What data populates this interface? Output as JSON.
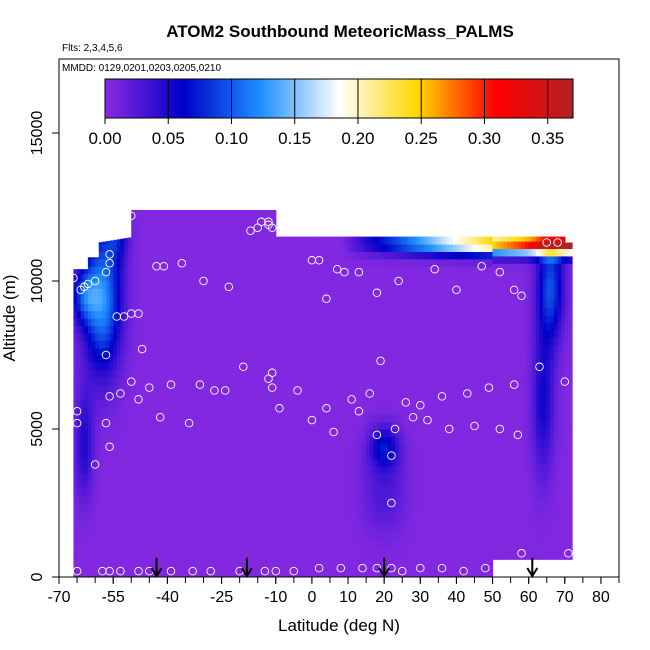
{
  "chart_data": {
    "type": "heatmap",
    "title": "ATOM2 Southbound MeteoricMass_PALMS",
    "flights_text": "Flts: 2,3,4,5,6",
    "dates_text": "MMDD: 0129,0201,0203,0205,0210",
    "xlabel": "Latitude (deg N)",
    "ylabel": "Altitude (m)",
    "xlim": [
      -70,
      85
    ],
    "ylim": [
      0,
      17500
    ],
    "x_ticks": [
      -70,
      -55,
      -40,
      -25,
      -10,
      0,
      10,
      20,
      30,
      40,
      50,
      60,
      70,
      80
    ],
    "y_ticks": [
      0,
      5000,
      10000,
      15000
    ],
    "colorbar": {
      "range": [
        0,
        0.37
      ],
      "ticks": [
        0.0,
        0.05,
        0.1,
        0.15,
        0.2,
        0.25,
        0.3,
        0.35
      ],
      "tick_labels": [
        "0.00",
        "0.05",
        "0.10",
        "0.15",
        "0.20",
        "0.25",
        "0.30",
        "0.35"
      ],
      "colors": [
        "#8a2be2",
        "#0000c8",
        "#1e90ff",
        "#ffffff",
        "#ffd700",
        "#ff0000",
        "#b22222"
      ]
    },
    "arrows_latitude": [
      -43,
      -18,
      20,
      61
    ],
    "sample_points": [
      [
        -65,
        5600
      ],
      [
        -65,
        5200
      ],
      [
        -66,
        10100
      ],
      [
        -64,
        9700
      ],
      [
        -63,
        9800
      ],
      [
        -62,
        9900
      ],
      [
        -60,
        10000
      ],
      [
        -56,
        10900
      ],
      [
        -56,
        10600
      ],
      [
        -57,
        10300
      ],
      [
        -54,
        11800
      ],
      [
        -52,
        12000
      ],
      [
        -50,
        12200
      ],
      [
        -54,
        8800
      ],
      [
        -52,
        8800
      ],
      [
        -50,
        8900
      ],
      [
        -48,
        8900
      ],
      [
        -57,
        7500
      ],
      [
        -47,
        7700
      ],
      [
        -50,
        6600
      ],
      [
        -43,
        10500
      ],
      [
        -41,
        10500
      ],
      [
        -36,
        10600
      ],
      [
        -30,
        10000
      ],
      [
        -23,
        9800
      ],
      [
        -17,
        11700
      ],
      [
        -15,
        11800
      ],
      [
        -14,
        12000
      ],
      [
        -12,
        12000
      ],
      [
        -12,
        11900
      ],
      [
        -11,
        11800
      ],
      [
        0,
        10700
      ],
      [
        2,
        10700
      ],
      [
        4,
        9400
      ],
      [
        7,
        10400
      ],
      [
        9,
        10300
      ],
      [
        13,
        10300
      ],
      [
        18,
        9600
      ],
      [
        24,
        10000
      ],
      [
        34,
        10400
      ],
      [
        40,
        9700
      ],
      [
        47,
        10500
      ],
      [
        52,
        10300
      ],
      [
        56,
        9700
      ],
      [
        58,
        9500
      ],
      [
        65,
        11300
      ],
      [
        68,
        11300
      ],
      [
        -56,
        6100
      ],
      [
        -53,
        6200
      ],
      [
        -48,
        6000
      ],
      [
        -42,
        5400
      ],
      [
        -45,
        6400
      ],
      [
        -39,
        6500
      ],
      [
        -34,
        5200
      ],
      [
        -31,
        6500
      ],
      [
        -27,
        6300
      ],
      [
        -24,
        6300
      ],
      [
        -19,
        7100
      ],
      [
        -12,
        6700
      ],
      [
        -11,
        6900
      ],
      [
        -11,
        6400
      ],
      [
        -9,
        5700
      ],
      [
        -4,
        6300
      ],
      [
        0,
        5300
      ],
      [
        4,
        5700
      ],
      [
        6,
        4900
      ],
      [
        11,
        6000
      ],
      [
        13,
        5600
      ],
      [
        16,
        6200
      ],
      [
        18,
        4800
      ],
      [
        19,
        7300
      ],
      [
        22,
        4100
      ],
      [
        23,
        5000
      ],
      [
        26,
        5900
      ],
      [
        28,
        5400
      ],
      [
        30,
        5800
      ],
      [
        32,
        5300
      ],
      [
        36,
        6100
      ],
      [
        38,
        5000
      ],
      [
        43,
        6200
      ],
      [
        45,
        5100
      ],
      [
        49,
        6400
      ],
      [
        52,
        5000
      ],
      [
        56,
        6500
      ],
      [
        57,
        4800
      ],
      [
        63,
        7100
      ],
      [
        70,
        6600
      ],
      [
        -57,
        5200
      ],
      [
        -60,
        3800
      ],
      [
        -56,
        4400
      ],
      [
        22,
        2500
      ],
      [
        -65,
        200
      ],
      [
        -58,
        200
      ],
      [
        -56,
        200
      ],
      [
        -53,
        200
      ],
      [
        -48,
        200
      ],
      [
        -45,
        200
      ],
      [
        -39,
        200
      ],
      [
        -33,
        200
      ],
      [
        -28,
        200
      ],
      [
        -20,
        200
      ],
      [
        -13,
        200
      ],
      [
        -10,
        200
      ],
      [
        -5,
        200
      ],
      [
        2,
        300
      ],
      [
        8,
        300
      ],
      [
        14,
        300
      ],
      [
        18,
        300
      ],
      [
        22,
        300
      ],
      [
        25,
        200
      ],
      [
        30,
        300
      ],
      [
        36,
        300
      ],
      [
        42,
        200
      ],
      [
        48,
        300
      ],
      [
        58,
        800
      ],
      [
        71,
        800
      ]
    ]
  }
}
